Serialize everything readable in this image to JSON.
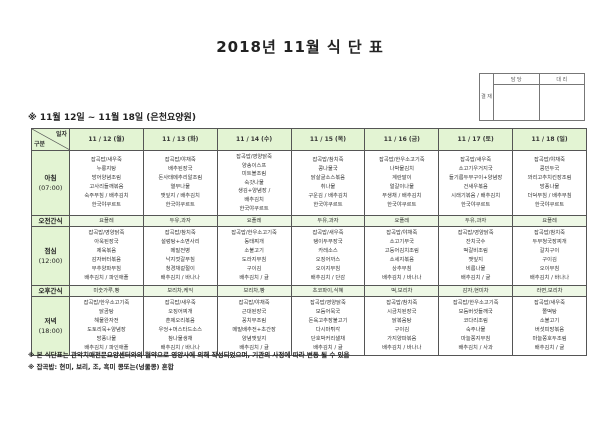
{
  "title": "2018년 11월 식 단 표",
  "approval": {
    "label": "결 재",
    "col1": "담 당",
    "col2": "대 리"
  },
  "period": "※ 11월 12일 ~ 11월 18일 (은천요양원)",
  "header": {
    "corner_top": "일자",
    "corner_bottom": "구분",
    "days": [
      "11 / 12 (월)",
      "11 / 13 (화)",
      "11 / 14 (수)",
      "11 / 15 (목)",
      "11 / 16 (금)",
      "11 / 17 (토)",
      "11 / 18 (일)"
    ]
  },
  "rows": [
    {
      "label": "아침",
      "time": "(07:00)",
      "type": "meal",
      "cells": [
        [
          "잡곡밥/새우죽",
          "누룽지탕",
          "방어양념조림",
          "고사리들깨볶음",
          "숙주무침 / 배추김치",
          "한국야쿠르트"
        ],
        [
          "잡곡밥/야채죽",
          "배추된장국",
          "돈사태메추리알조림",
          "열무나물",
          "깻잎지 / 배추김치",
          "한국야쿠르트"
        ],
        [
          "잡곡밥/영양닭죽",
          "양송이스프",
          "미트볼조림",
          "숙갓나물",
          "생김+양념장 /",
          "배추김치",
          "한국야쿠르트"
        ],
        [
          "잡곡밥/참치죽",
          "콩나물국",
          "닭살굴소스볶음",
          "취나물",
          "구운김 / 배추김치",
          "한국야쿠르트"
        ],
        [
          "잡곡밥/한우소고기죽",
          "나박물김치",
          "계란말이",
          "얼갈이나물",
          "무생채 / 배추김치",
          "한국야쿠르트"
        ],
        [
          "잡곡밥/새우죽",
          "소고기우거지국",
          "들기름두부구이+양념장",
          "건새우볶음",
          "시래기볶음 / 배추김치",
          "한국야쿠르트"
        ],
        [
          "잡곡밥/야채죽",
          "콩민두국",
          "꽈리고추치킨장조림",
          "방풍나물",
          "더덕무침 / 배추무침",
          "한국야쿠르트"
        ]
      ]
    },
    {
      "label": "오전간식",
      "type": "snack",
      "cells": [
        "요플레",
        "두유,과자",
        "요플레",
        "두유,과자",
        "요플레",
        "두유,과자",
        "요플레"
      ]
    },
    {
      "label": "점심",
      "time": "(12:00)",
      "type": "meal",
      "cells": [
        [
          "잡곡밥/영양닭죽",
          "아욱된장국",
          "제육볶음",
          "감자버터볶음",
          "부추양파무침",
          "배추김치 / 파인애플"
        ],
        [
          "잡곡밥/참치죽",
          "설렁탕+소면사리",
          "메밀전병",
          "낙지젓갈무침",
          "청경채겉절이",
          "배추김치 / 바나나"
        ],
        [
          "잡곡밥/한우소고기죽",
          "동태찌개",
          "소불고기",
          "도라지무침",
          "구이김",
          "배추김치 / 귤"
        ],
        [
          "잡곡밥/새우죽",
          "탱이두부장국",
          "카레소스",
          "오징어까스",
          "오이지무침",
          "배추김치 / 단감"
        ],
        [
          "잡곡밥/야채죽",
          "소고기무국",
          "고등어김치조림",
          "소세지볶음",
          "상추무침",
          "배추김치 / 바나나"
        ],
        [
          "잡곡밥/영양닭죽",
          "잔치국수",
          "떡갈비조림",
          "깻잎지",
          "비름나물",
          "배추김치 / 귤"
        ],
        [
          "잡곡밥/참치죽",
          "두부청국장찌개",
          "갈치구이",
          "구이김",
          "오이무침",
          "배추김치 / 바나나"
        ]
      ]
    },
    {
      "label": "오후간식",
      "type": "snack",
      "cells": [
        "미숫가루,빵",
        "보리차,케익",
        "보리차,빵",
        "초코파이,식혜",
        "떡,보리차",
        "감자,현미차",
        "라면,보리차"
      ]
    },
    {
      "label": "저녁",
      "time": "(18:00)",
      "type": "meal",
      "cells": [
        [
          "잡곡밥/한우소고기죽",
          "닭곰탕",
          "해물완자전",
          "도토리묵+양념장",
          "방풍나물",
          "배추김치 / 파인애플"
        ],
        [
          "잡곡밥/새우죽",
          "오징어찌개",
          "훈제오리볶음",
          "우엉+머스타드소스",
          "참나물생채",
          "배추김치 / 바나나"
        ],
        [
          "잡곡밥/야채죽",
          "근대된장국",
          "꽁치무조림",
          "메밀배추전+초간장",
          "양념깻잎지",
          "배추김치 / 귤"
        ],
        [
          "잡곡밥/영양닭죽",
          "모듬어묵국",
          "돈육고추장불고기",
          "다시마튀각",
          "단호박커리샐채",
          "배추김치 / 귤"
        ],
        [
          "잡곡밥/참치죽",
          "시금치된장국",
          "닭볶음탕",
          "구이김",
          "가지양파볶음",
          "배추김치 / 바나나"
        ],
        [
          "잡곡밥/한우소고기죽",
          "모듬버섯들깨국",
          "코다리조림",
          "숙주나물",
          "마늘쫑지무침",
          "배추김치 / 사과"
        ],
        [
          "잡곡밥/새우죽",
          "쫄떡탕",
          "소불고기",
          "버섯피망볶음",
          "마늘쫑호두조림",
          "배추김치 / 귤"
        ]
      ]
    }
  ],
  "notes": [
    "※ 본 식단표는 관악치매전문요양센터와의 협약으로 영양사에 의해 작성되었으며, 기관의 사정에 따라 변동 될 수 있음",
    "※ 잡곡밥: 현미, 보리, 조, 흑미 콩또는(넝쿨콩) 혼합"
  ],
  "colors": {
    "header_bg": "#e3f4d3",
    "snack_bg": "#eef8e6",
    "border": "#555555"
  }
}
